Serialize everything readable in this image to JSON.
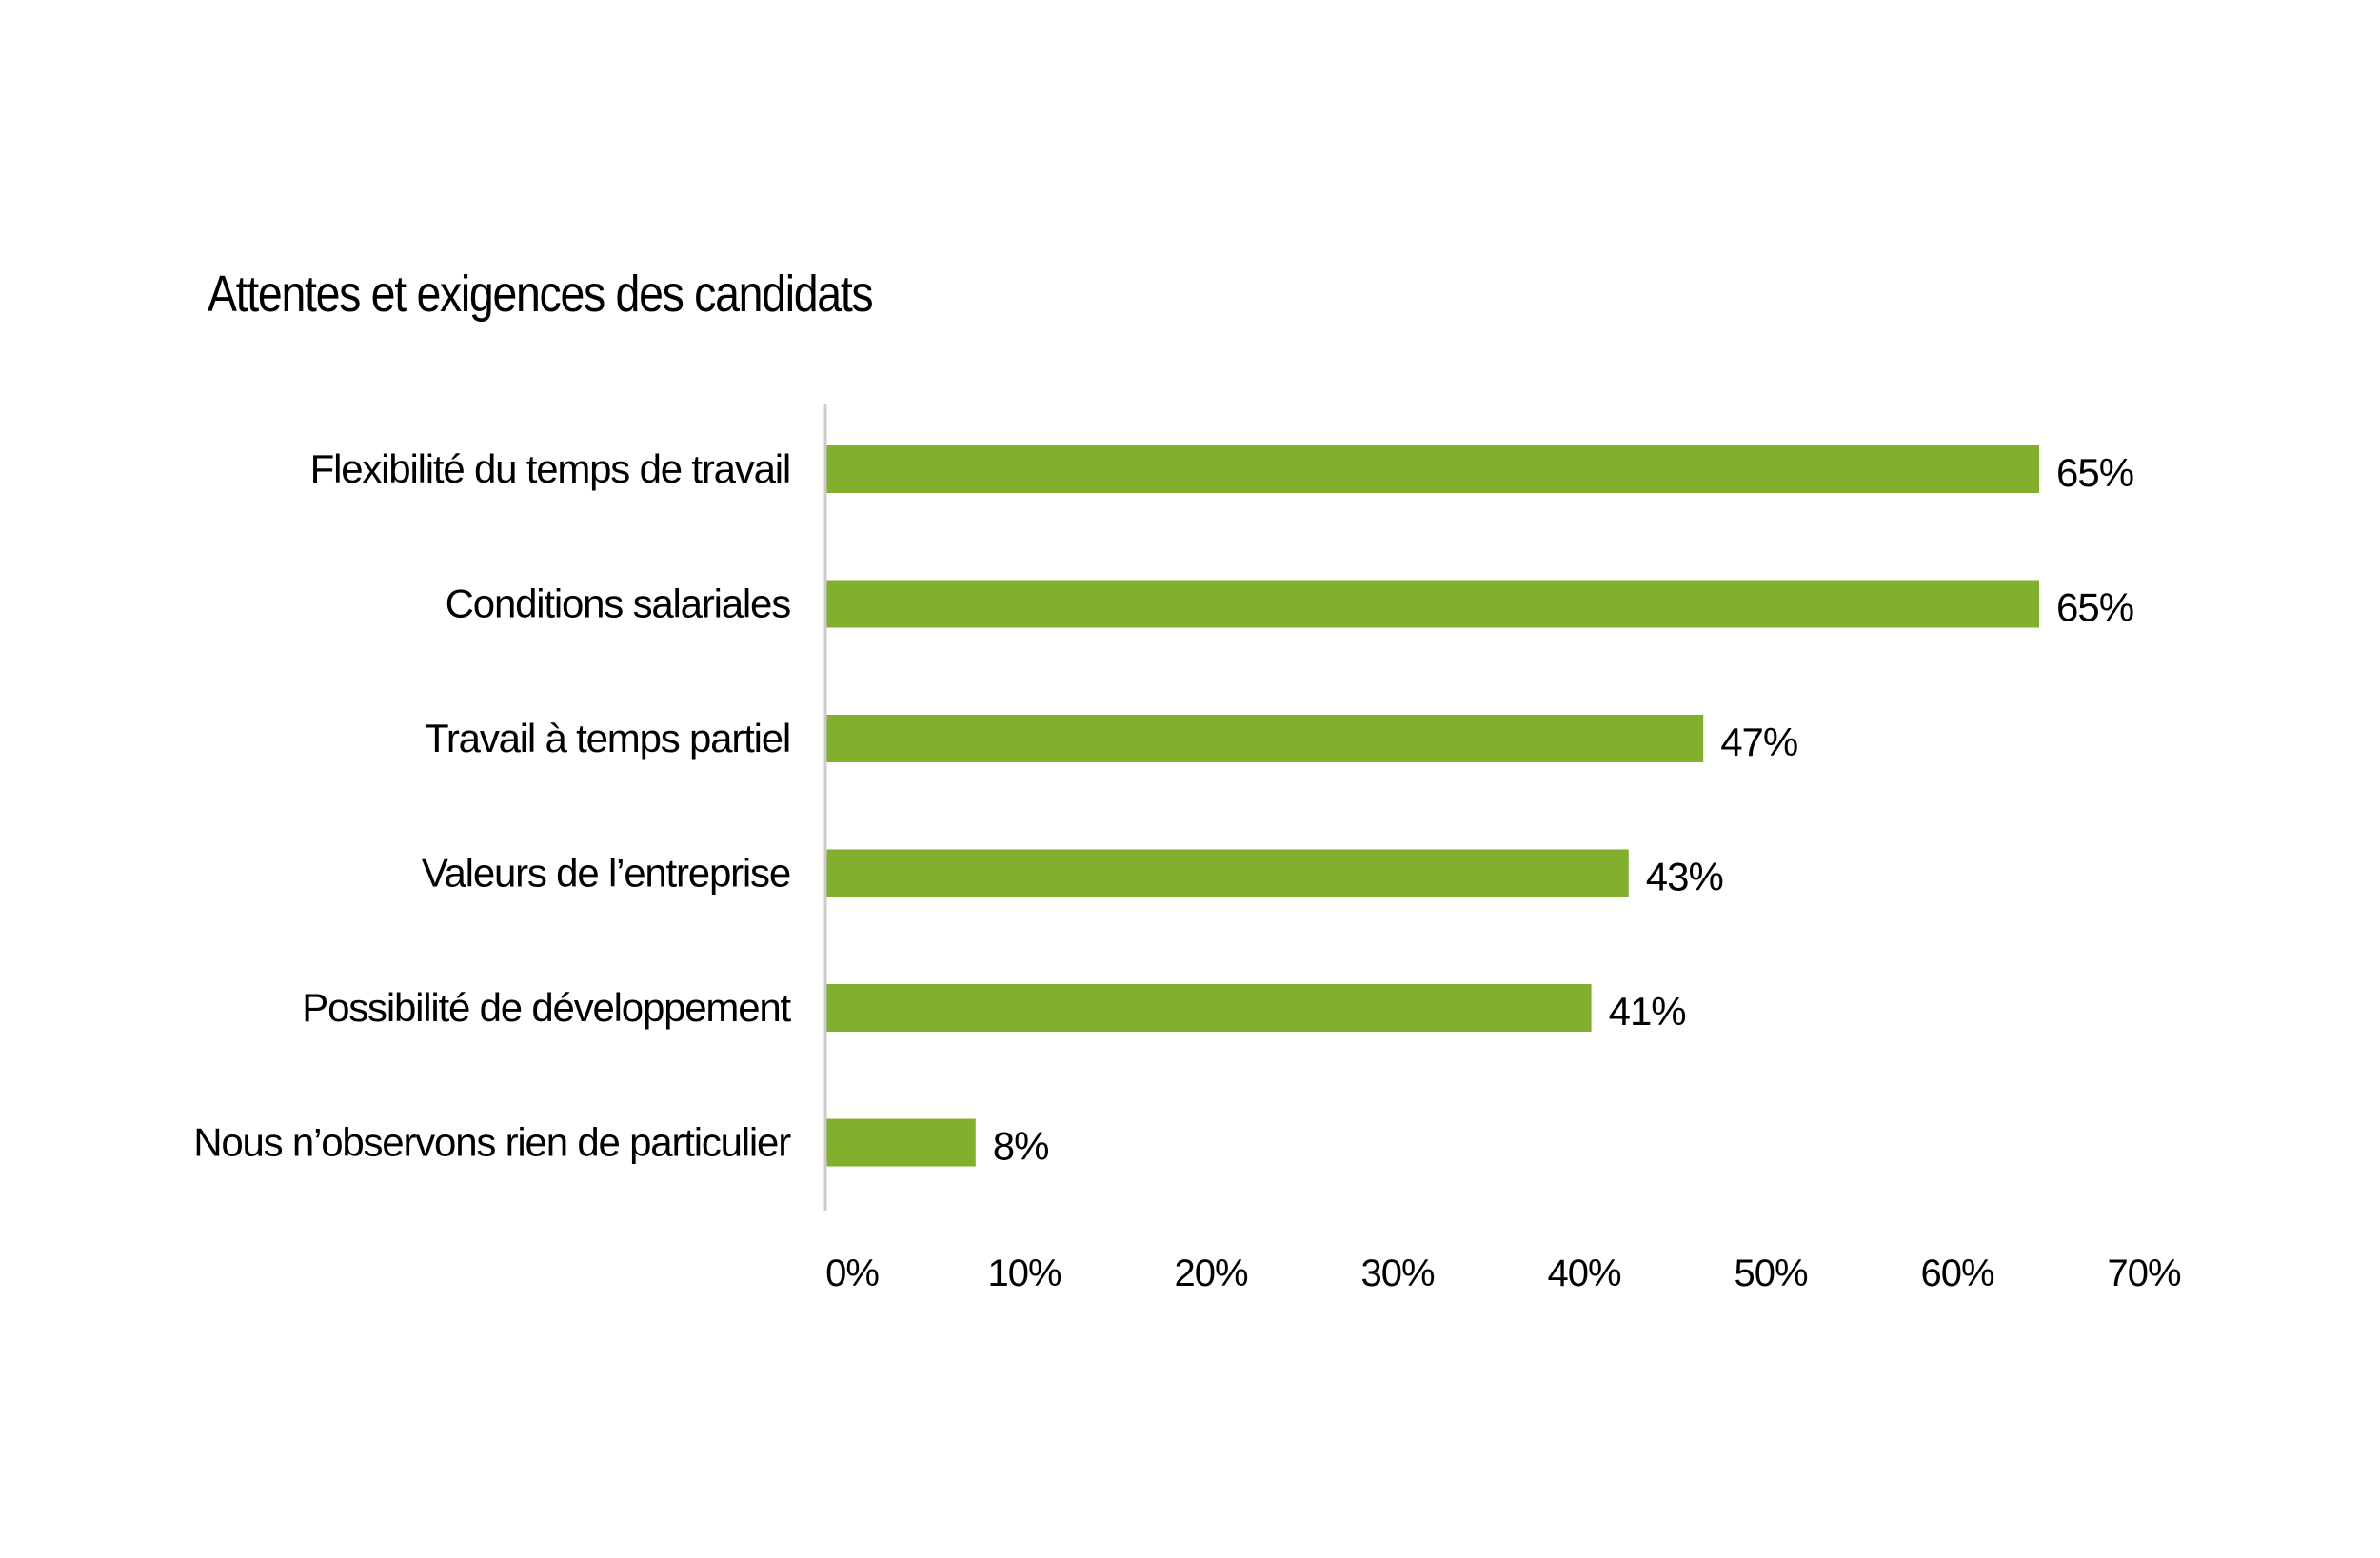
{
  "chart_data": {
    "type": "bar",
    "orientation": "horizontal",
    "title": "Attentes et exigences des candidats",
    "xlabel": "",
    "ylabel": "",
    "categories": [
      "Flexibilité du temps de travail",
      "Conditions salariales",
      "Travail à temps partiel",
      "Valeurs de l’entreprise",
      "Possibilité de développement",
      "Nous n’observons rien de particulier"
    ],
    "values": [
      65,
      65,
      47,
      43,
      41,
      8
    ],
    "value_labels": [
      "65%",
      "65%",
      "47%",
      "43%",
      "41%",
      "8%"
    ],
    "xlim": [
      0,
      70
    ],
    "xticks": [
      0,
      10,
      20,
      30,
      40,
      50,
      60,
      70
    ],
    "xtick_labels": [
      "0%",
      "10%",
      "20%",
      "30%",
      "40%",
      "50%",
      "60%",
      "70%"
    ],
    "grid": false,
    "legend": "none",
    "bar_color": "#82b02e",
    "axis_color": "#cccccc"
  }
}
